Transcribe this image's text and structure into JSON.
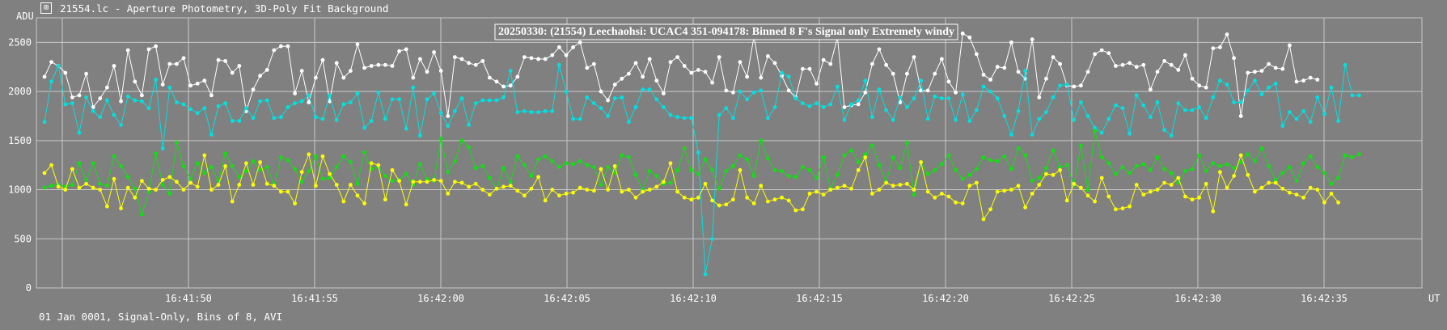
{
  "window": {
    "title": "21554.lc - Aperture Photometry, 3D-Poly Fit Background",
    "icon": "lightcurve-app-icon"
  },
  "footer": {
    "text": "01 Jan 0001, Signal-Only, Bins of 8, AVI"
  },
  "colors": {
    "background": "#808080",
    "grid": "#c8c8c8",
    "text": "#ffffff",
    "series_white": "#ffffff",
    "series_cyan": "#00e0e0",
    "series_green": "#10e010",
    "series_yellow": "#ffff00"
  },
  "chart_data": {
    "type": "line",
    "title": "20250330: (21554) Leechaohsi: UCAC4 351-094178: Binned 8 F's Signal only Extremely windy",
    "ylabel": "ADU",
    "xlabel": "UT",
    "ylim": [
      0,
      2750
    ],
    "yticks": [
      0,
      500,
      1000,
      1500,
      2000,
      2500
    ],
    "xticks": [
      "16:41:50",
      "16:41:55",
      "16:42:00",
      "16:42:05",
      "16:42:10",
      "16:42:15",
      "16:42:20",
      "16:42:25",
      "16:42:30",
      "16:42:35"
    ],
    "grid": true,
    "x_start_bin": 0,
    "series": [
      {
        "name": "",
        "color": "#ffffff",
        "values": [
          2150,
          2300,
          2260,
          2190,
          1940,
          1960,
          2180,
          1840,
          1930,
          2040,
          2260,
          1900,
          2420,
          2100,
          1960,
          2430,
          2460,
          2070,
          2280,
          2280,
          2340,
          2060,
          2080,
          2110,
          1960,
          2320,
          2310,
          2190,
          2260,
          1800,
          2020,
          2160,
          2220,
          2420,
          2460,
          2460,
          1980,
          2210,
          1890,
          2140,
          2320,
          1900,
          2290,
          2140,
          2210,
          2480,
          2240,
          2260,
          2270,
          2270,
          2260,
          2410,
          2430,
          2140,
          2330,
          2200,
          2400,
          2210,
          1750,
          2350,
          2330,
          2290,
          2270,
          2310,
          2140,
          2100,
          2050,
          2060,
          2150,
          2350,
          2340,
          2330,
          2330,
          2370,
          2450,
          2370,
          2450,
          2500,
          2240,
          2280,
          2000,
          1910,
          2070,
          2130,
          2180,
          2290,
          2150,
          2330,
          2110,
          1980,
          2300,
          2350,
          2260,
          2190,
          2220,
          2200,
          2090,
          2350,
          2010,
          1990,
          2300,
          2150,
          2560,
          2140,
          2360,
          2290,
          2160,
          2010,
          1940,
          2230,
          2230,
          2080,
          2320,
          2280,
          2550,
          1840,
          1860,
          1870,
          1990,
          2280,
          2430,
          2270,
          2180,
          1890,
          2180,
          2350,
          2010,
          2010,
          2180,
          2330,
          2100,
          1990,
          2590,
          2550,
          2380,
          2170,
          2120,
          2250,
          2240,
          2500,
          2200,
          2130,
          2530,
          1940,
          2130,
          2350,
          2280,
          2060,
          2050,
          2060,
          2200,
          2380,
          2420,
          2390,
          2260,
          2270,
          2290,
          2250,
          2270,
          2020,
          2200,
          2310,
          2270,
          2220,
          2370,
          2130,
          2060,
          2040,
          2440,
          2450,
          2580,
          2340,
          1750,
          2190,
          2200,
          2210,
          2280,
          2240,
          2230,
          2470,
          2100,
          2110,
          2140,
          2120
        ]
      },
      {
        "name": "",
        "color": "#00e0e0",
        "values": [
          1690,
          2100,
          2260,
          1870,
          1880,
          1580,
          1940,
          1800,
          1740,
          1910,
          1760,
          1660,
          1950,
          1910,
          1900,
          1830,
          2120,
          1420,
          2040,
          1890,
          1870,
          1820,
          1780,
          1830,
          1560,
          1850,
          1880,
          1700,
          1700,
          1830,
          1730,
          1900,
          1910,
          1730,
          1740,
          1840,
          1880,
          1900,
          1960,
          1740,
          1720,
          1960,
          1710,
          1870,
          1890,
          1980,
          1630,
          1700,
          1990,
          1720,
          1920,
          1920,
          1620,
          2040,
          1550,
          1920,
          1980,
          1780,
          1650,
          1800,
          1930,
          1660,
          1880,
          1910,
          1910,
          1910,
          1940,
          2210,
          1790,
          1800,
          1790,
          1790,
          1800,
          1800,
          2270,
          2000,
          1720,
          1720,
          1940,
          1880,
          1830,
          1750,
          1930,
          1940,
          1690,
          1840,
          2020,
          2020,
          1920,
          1840,
          1760,
          1740,
          1730,
          1730,
          1380,
          140,
          500,
          1760,
          1830,
          1730,
          2000,
          1920,
          1990,
          2010,
          1730,
          1840,
          2190,
          2150,
          1930,
          1880,
          1850,
          1880,
          1840,
          1870,
          2050,
          1710,
          1870,
          1910,
          2110,
          1740,
          2020,
          1810,
          1710,
          1940,
          1840,
          1930,
          2110,
          1720,
          1950,
          1930,
          1930,
          1710,
          1970,
          1700,
          1810,
          2050,
          2000,
          1930,
          1750,
          1560,
          1800,
          2210,
          1560,
          1720,
          1790,
          1940,
          2060,
          2070,
          1710,
          1890,
          1750,
          1630,
          1580,
          1720,
          1860,
          1830,
          1570,
          1960,
          1860,
          1740,
          1890,
          1610,
          1550,
          1880,
          1810,
          1810,
          1840,
          1730,
          1940,
          2110,
          2070,
          1890,
          1890,
          2010,
          2110,
          1970,
          2040,
          2080,
          1650,
          1790,
          1720,
          1800,
          1690,
          1940,
          1770,
          2040,
          1700,
          2270,
          1960,
          1960
        ]
      },
      {
        "name": "",
        "color": "#10e010",
        "values": [
          1020,
          1040,
          1050,
          1030,
          1050,
          1270,
          1100,
          1270,
          1060,
          1040,
          1340,
          1240,
          1130,
          1010,
          750,
          980,
          1370,
          1050,
          960,
          1480,
          1240,
          1110,
          1270,
          1170,
          1230,
          1090,
          1370,
          1240,
          1130,
          1190,
          1290,
          1200,
          1230,
          1050,
          1330,
          1300,
          1210,
          1080,
          1190,
          1340,
          1110,
          1120,
          1230,
          1340,
          1280,
          1060,
          1380,
          1210,
          1230,
          1140,
          1090,
          1100,
          1160,
          1050,
          1260,
          1110,
          1090,
          1520,
          1180,
          1290,
          1500,
          1430,
          1220,
          1240,
          1120,
          1010,
          1220,
          1080,
          1340,
          1250,
          1140,
          1310,
          1340,
          1290,
          1230,
          1270,
          1260,
          1290,
          1250,
          1230,
          1050,
          1230,
          1170,
          1350,
          1330,
          1150,
          1000,
          1190,
          1140,
          1060,
          1070,
          1200,
          1420,
          1200,
          1160,
          1310,
          1200,
          1010,
          1190,
          1240,
          1350,
          1310,
          1140,
          1500,
          1320,
          1200,
          1190,
          1140,
          1130,
          1230,
          1200,
          1120,
          1330,
          1010,
          1150,
          1350,
          1400,
          1280,
          1360,
          1450,
          1250,
          1080,
          1330,
          1220,
          1480,
          950,
          1280,
          1160,
          1200,
          1260,
          1350,
          1200,
          1110,
          1150,
          1210,
          1330,
          1300,
          1290,
          1340,
          1210,
          1420,
          1350,
          1090,
          1120,
          1220,
          1400,
          1230,
          1250,
          1050,
          1450,
          1000,
          1600,
          1330,
          1270,
          1160,
          1230,
          1170,
          1240,
          1260,
          1200,
          1330,
          1210,
          1170,
          1070,
          1190,
          1210,
          1350,
          1190,
          1270,
          1240,
          1260,
          1220,
          1280,
          1360,
          1290,
          1420,
          1240,
          1100,
          1170,
          1230,
          1090,
          1270,
          1340,
          1230,
          1170,
          1060,
          1120,
          1350,
          1330,
          1360
        ]
      },
      {
        "name": "",
        "color": "#ffff00",
        "values": [
          1170,
          1250,
          1030,
          1000,
          1210,
          1020,
          1060,
          1020,
          1000,
          830,
          1110,
          810,
          1020,
          920,
          1090,
          1010,
          1000,
          1100,
          1130,
          1080,
          1000,
          1070,
          1030,
          1350,
          1000,
          1050,
          1240,
          880,
          1050,
          1270,
          1050,
          1280,
          1060,
          1040,
          980,
          980,
          860,
          1180,
          1360,
          1040,
          1340,
          1160,
          1050,
          880,
          1050,
          940,
          860,
          1270,
          1250,
          900,
          1200,
          1090,
          850,
          1080,
          1080,
          1080,
          1100,
          1090,
          960,
          1080,
          1070,
          1030,
          1060,
          1000,
          950,
          1010,
          1030,
          1040,
          990,
          940,
          1010,
          1130,
          890,
          1000,
          940,
          960,
          970,
          1020,
          1000,
          990,
          1210,
          1000,
          1240,
          980,
          1000,
          920,
          980,
          1000,
          1030,
          1080,
          1270,
          980,
          920,
          900,
          920,
          1060,
          890,
          840,
          850,
          900,
          1200,
          920,
          860,
          1040,
          880,
          900,
          920,
          890,
          790,
          800,
          960,
          980,
          950,
          1000,
          1020,
          1040,
          1010,
          1200,
          1330,
          960,
          1000,
          1070,
          1040,
          1050,
          1060,
          1000,
          1280,
          980,
          920,
          960,
          930,
          870,
          860,
          1040,
          1070,
          700,
          800,
          980,
          990,
          1000,
          1040,
          820,
          960,
          1050,
          1160,
          1150,
          1200,
          890,
          1060,
          1020,
          940,
          880,
          1120,
          930,
          800,
          810,
          830,
          1050,
          950,
          980,
          1000,
          1070,
          1050,
          1120,
          930,
          900,
          920,
          1060,
          780,
          1180,
          1020,
          1140,
          1350,
          1150,
          980,
          1020,
          1070,
          1070,
          1010,
          970,
          950,
          920,
          1020,
          1000,
          870,
          960,
          870
        ]
      }
    ]
  }
}
